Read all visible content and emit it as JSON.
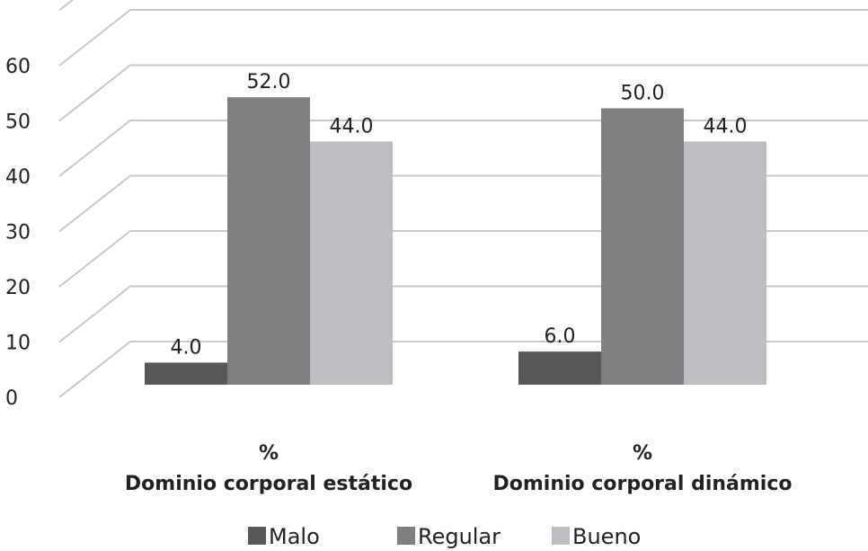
{
  "chart_data": {
    "type": "bar",
    "style": "3d-clustered-column",
    "categories": [
      [
        "%",
        "Dominio corporal estático"
      ],
      [
        "%",
        "Dominio corporal dinámico"
      ]
    ],
    "series": [
      {
        "name": "Malo",
        "values": [
          4.0,
          6.0
        ],
        "color": "#58585a"
      },
      {
        "name": "Regular",
        "values": [
          52.0,
          50.0
        ],
        "color": "#808083"
      },
      {
        "name": "Bueno",
        "values": [
          44.0,
          44.0
        ],
        "color": "#bcbdc0"
      }
    ],
    "value_labels": [
      [
        "4.0",
        "6.0"
      ],
      [
        "52.0",
        "50.0"
      ],
      [
        "44.0",
        "44.0"
      ]
    ],
    "ylim": [
      0,
      70
    ],
    "yticks": [
      0,
      10,
      20,
      30,
      40,
      50,
      60
    ],
    "ytick_labels": [
      "0",
      "10",
      "20",
      "30",
      "40",
      "50",
      "60"
    ],
    "grid": true,
    "gridline_color": "#c8c8c8",
    "legend_position": "bottom"
  }
}
